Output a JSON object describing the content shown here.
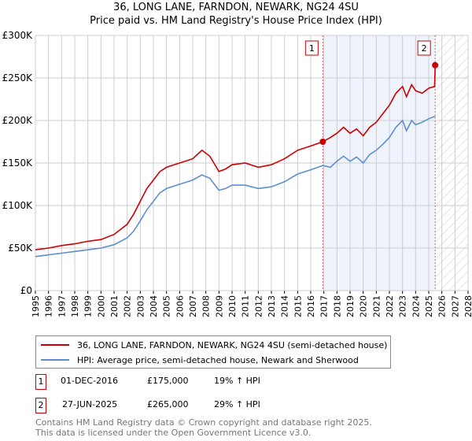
{
  "chart_data": {
    "type": "line",
    "title": "36, LONG LANE, FARNDON, NEWARK, NG24 4SU",
    "subtitle": "Price paid vs. HM Land Registry's House Price Index (HPI)",
    "xlim": [
      1995,
      2028
    ],
    "ylim": [
      0,
      300000
    ],
    "x_ticks": [
      "1995",
      "1996",
      "1997",
      "1998",
      "1999",
      "2000",
      "2001",
      "2002",
      "2003",
      "2004",
      "2005",
      "2006",
      "2007",
      "2008",
      "2009",
      "2010",
      "2011",
      "2012",
      "2013",
      "2014",
      "2015",
      "2016",
      "2017",
      "2018",
      "2019",
      "2020",
      "2021",
      "2022",
      "2023",
      "2024",
      "2025",
      "2026",
      "2027",
      "2028"
    ],
    "y_ticks": [
      {
        "v": 0,
        "label": "£0"
      },
      {
        "v": 50000,
        "label": "£50K"
      },
      {
        "v": 100000,
        "label": "£100K"
      },
      {
        "v": 150000,
        "label": "£150K"
      },
      {
        "v": 200000,
        "label": "£200K"
      },
      {
        "v": 250000,
        "label": "£250K"
      },
      {
        "v": 300000,
        "label": "£300K"
      }
    ],
    "grid": true,
    "series": [
      {
        "name": "36, LONG LANE, FARNDON, NEWARK, NG24 4SU (semi-detached house)",
        "color": "#cc0000",
        "x": [
          1995,
          1996,
          1997,
          1998,
          1999,
          2000,
          2001,
          2002,
          2002.5,
          2003,
          2003.5,
          2004,
          2004.5,
          2005,
          2006,
          2007,
          2007.7,
          2008.3,
          2009,
          2009.5,
          2010,
          2011,
          2012,
          2013,
          2014,
          2015,
          2016,
          2016.92,
          2017.5,
          2018,
          2018.5,
          2019,
          2019.5,
          2020,
          2020.5,
          2021,
          2021.5,
          2022,
          2022.5,
          2023,
          2023.3,
          2023.7,
          2024,
          2024.5,
          2025,
          2025.45,
          2025.49
        ],
        "y": [
          48000,
          50000,
          53000,
          55000,
          58000,
          60000,
          66000,
          78000,
          90000,
          105000,
          120000,
          130000,
          140000,
          145000,
          150000,
          155000,
          165000,
          158000,
          140000,
          143000,
          148000,
          150000,
          145000,
          148000,
          155000,
          165000,
          170000,
          175000,
          180000,
          185000,
          192000,
          185000,
          190000,
          182000,
          192000,
          198000,
          208000,
          218000,
          232000,
          240000,
          228000,
          242000,
          235000,
          232000,
          238000,
          240000,
          265000
        ]
      },
      {
        "name": "HPI: Average price, semi-detached house, Newark and Sherwood",
        "color": "#5b8fd0",
        "x": [
          1995,
          1996,
          1997,
          1998,
          1999,
          2000,
          2001,
          2002,
          2002.5,
          2003,
          2003.5,
          2004,
          2004.5,
          2005,
          2006,
          2007,
          2007.7,
          2008.3,
          2009,
          2009.5,
          2010,
          2011,
          2012,
          2013,
          2014,
          2015,
          2016,
          2016.92,
          2017.5,
          2018,
          2018.5,
          2019,
          2019.5,
          2020,
          2020.5,
          2021,
          2021.5,
          2022,
          2022.5,
          2023,
          2023.3,
          2023.7,
          2024,
          2024.5,
          2025,
          2025.49
        ],
        "y": [
          40000,
          42000,
          44000,
          46000,
          48000,
          50000,
          54000,
          62000,
          70000,
          82000,
          95000,
          105000,
          115000,
          120000,
          125000,
          130000,
          136000,
          132000,
          118000,
          120000,
          124000,
          124000,
          120000,
          122000,
          128000,
          137000,
          142000,
          147000,
          145000,
          152000,
          158000,
          152000,
          157000,
          150000,
          160000,
          165000,
          172000,
          180000,
          192000,
          200000,
          188000,
          200000,
          195000,
          198000,
          202000,
          205000
        ]
      }
    ],
    "annotations": [
      {
        "label": "1",
        "x": 2016.92,
        "y": 175000
      },
      {
        "label": "2",
        "x": 2025.49,
        "y": 265000
      }
    ],
    "shaded_from": 2016.92,
    "hatched_from": 2025.49
  },
  "legend": {
    "items": [
      "36, LONG LANE, FARNDON, NEWARK, NG24 4SU (semi-detached house)",
      "HPI: Average price, semi-detached house, Newark and Sherwood"
    ]
  },
  "transactions": [
    {
      "num": "1",
      "date": "01-DEC-2016",
      "price": "£175,000",
      "hpi": "19% ↑ HPI"
    },
    {
      "num": "2",
      "date": "27-JUN-2025",
      "price": "£265,000",
      "hpi": "29% ↑ HPI"
    }
  ],
  "footer": {
    "line1": "Contains HM Land Registry data © Crown copyright and database right 2025.",
    "line2": "This data is licensed under the Open Government Licence v3.0."
  }
}
